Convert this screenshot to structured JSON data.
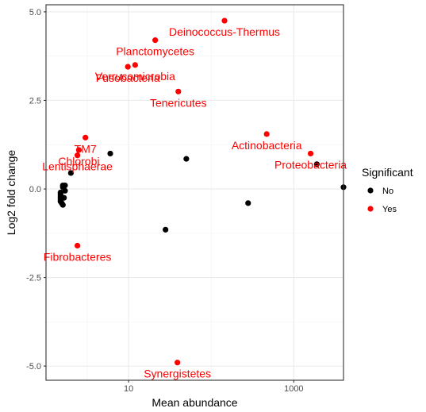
{
  "chart_data": {
    "type": "scatter",
    "title": "",
    "xlabel": "Mean abundance",
    "ylabel": "Log2 fold change",
    "x_scale": "log10",
    "xlim": [
      1.0,
      4000
    ],
    "ylim": [
      -5.4,
      5.2
    ],
    "x_ticks": [
      {
        "value": 10,
        "label": "10"
      },
      {
        "value": 1000,
        "label": "1000"
      }
    ],
    "y_ticks": [
      {
        "value": 5.0,
        "label": "5.0"
      },
      {
        "value": 2.5,
        "label": "2.5"
      },
      {
        "value": 0.0,
        "label": "0.0"
      },
      {
        "value": -2.5,
        "label": "-2.5"
      },
      {
        "value": -5.0,
        "label": "-5.0"
      }
    ],
    "grid": true,
    "legend": {
      "title": "Significant",
      "placement": "right",
      "entries": [
        {
          "label": "No",
          "color": "#000000"
        },
        {
          "label": "Yes",
          "color": "#ff0000"
        }
      ]
    },
    "colors": {
      "No": "#000000",
      "Yes": "#ff0000"
    },
    "series": [
      {
        "name": "No",
        "points": [
          {
            "x": 1.6,
            "y": 0.05
          },
          {
            "x": 1.6,
            "y": 0.1
          },
          {
            "x": 1.7,
            "y": 0.1
          },
          {
            "x": 1.7,
            "y": -0.05
          },
          {
            "x": 1.5,
            "y": -0.1
          },
          {
            "x": 1.5,
            "y": -0.15
          },
          {
            "x": 1.5,
            "y": -0.2
          },
          {
            "x": 1.5,
            "y": -0.25
          },
          {
            "x": 1.5,
            "y": -0.3
          },
          {
            "x": 1.5,
            "y": -0.35
          },
          {
            "x": 1.55,
            "y": -0.4
          },
          {
            "x": 1.6,
            "y": -0.45
          },
          {
            "x": 1.65,
            "y": -0.25
          },
          {
            "x": 2.0,
            "y": 0.45
          },
          {
            "x": 6.0,
            "y": 1.0
          },
          {
            "x": 50,
            "y": 0.85
          },
          {
            "x": 28,
            "y": -1.15
          },
          {
            "x": 280,
            "y": -0.4
          },
          {
            "x": 1900,
            "y": 0.7
          },
          {
            "x": 4000,
            "y": 0.05
          }
        ]
      },
      {
        "name": "Yes",
        "points": [
          {
            "x": 145,
            "y": 4.75,
            "label": "Deinococcus-Thermus"
          },
          {
            "x": 21,
            "y": 4.2,
            "label": "Planctomycetes"
          },
          {
            "x": 9.8,
            "y": 3.45,
            "label": "Fusobacteria"
          },
          {
            "x": 12,
            "y": 3.5,
            "label": "Verrucomicrobia"
          },
          {
            "x": 40,
            "y": 2.75,
            "label": "Tenericutes"
          },
          {
            "x": 470,
            "y": 1.55,
            "label": "Actinobacteria"
          },
          {
            "x": 1600,
            "y": 1.0,
            "label": "Proteobacteria"
          },
          {
            "x": 3.0,
            "y": 1.45,
            "label": "TM7"
          },
          {
            "x": 2.5,
            "y": 1.1,
            "label": "Chlorobi"
          },
          {
            "x": 2.4,
            "y": 0.95,
            "label": "Lentisphaerae"
          },
          {
            "x": 2.4,
            "y": -1.6,
            "label": "Fibrobacteres"
          },
          {
            "x": 39,
            "y": -4.9,
            "label": "Synergistetes"
          }
        ]
      }
    ]
  }
}
